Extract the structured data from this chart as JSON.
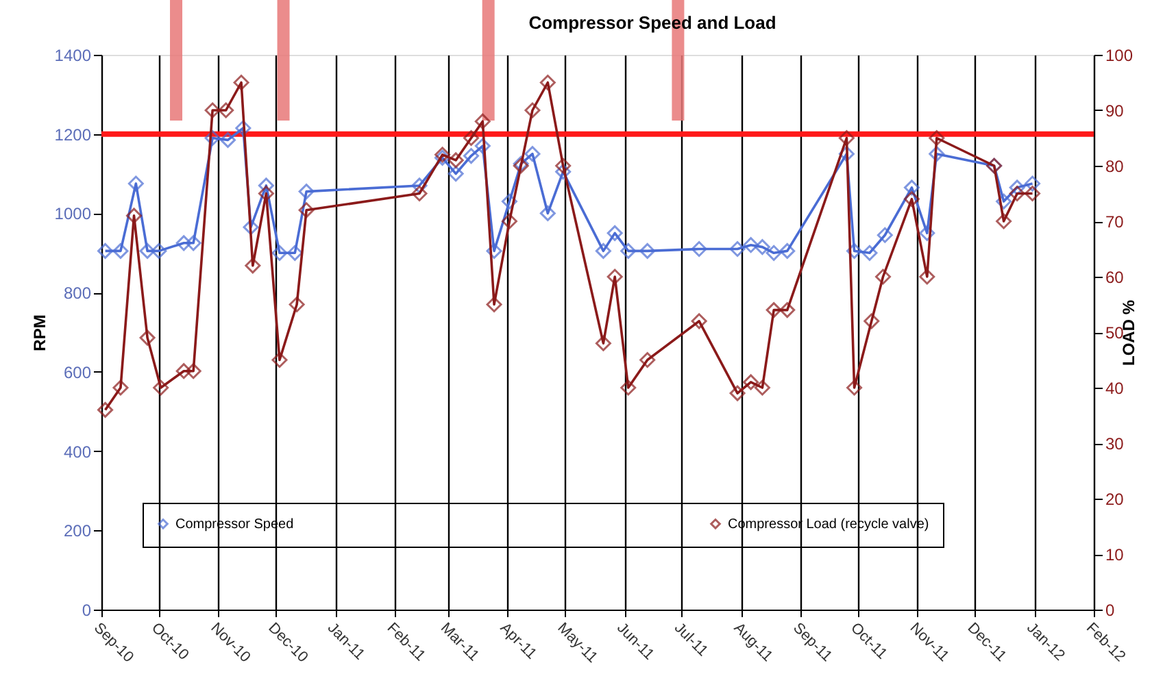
{
  "chart_data": {
    "type": "line",
    "title": "Compressor Speed and Load",
    "ylabel": "RPM",
    "y2label": "LOAD %",
    "xlim": [
      "2010-09-01",
      "2012-02-01"
    ],
    "xticks": [
      {
        "value": "2010-09-01",
        "label": "Sep-10"
      },
      {
        "value": "2010-10-01",
        "label": "Oct-10"
      },
      {
        "value": "2010-11-01",
        "label": "Nov-10"
      },
      {
        "value": "2010-12-01",
        "label": "Dec-10"
      },
      {
        "value": "2011-01-01",
        "label": "Jan-11"
      },
      {
        "value": "2011-02-01",
        "label": "Feb-11"
      },
      {
        "value": "2011-03-01",
        "label": "Mar-11"
      },
      {
        "value": "2011-04-01",
        "label": "Apr-11"
      },
      {
        "value": "2011-05-01",
        "label": "May-11"
      },
      {
        "value": "2011-06-01",
        "label": "Jun-11"
      },
      {
        "value": "2011-07-01",
        "label": "Jul-11"
      },
      {
        "value": "2011-08-01",
        "label": "Aug-11"
      },
      {
        "value": "2011-09-01",
        "label": "Sep-11"
      },
      {
        "value": "2011-10-01",
        "label": "Oct-11"
      },
      {
        "value": "2011-11-01",
        "label": "Nov-11"
      },
      {
        "value": "2011-12-01",
        "label": "Dec-11"
      },
      {
        "value": "2012-01-01",
        "label": "Jan-12"
      },
      {
        "value": "2012-02-01",
        "label": "Feb-12"
      }
    ],
    "ylim": [
      0,
      1400
    ],
    "yticks": [
      0,
      200,
      400,
      600,
      800,
      1000,
      1200,
      1400
    ],
    "y2lim": [
      0,
      100
    ],
    "y2ticks": [
      0,
      10,
      20,
      30,
      40,
      50,
      60,
      70,
      80,
      90,
      100
    ],
    "grid": "x",
    "legend": "bottom",
    "marker": "diamond",
    "line_style": "solid",
    "series": [
      {
        "name": "Compressor Speed",
        "color": "#4a6cd4",
        "x": [
          "2010-09-03",
          "2010-09-11",
          "2010-09-19",
          "2010-09-25",
          "2010-10-01",
          "2010-10-14",
          "2010-10-19",
          "2010-10-29",
          "2010-11-06",
          "2010-11-14",
          "2010-11-18",
          "2010-11-26",
          "2010-12-03",
          "2010-12-11",
          "2010-12-17",
          "2011-02-14",
          "2011-02-26",
          "2011-03-05",
          "2011-03-13",
          "2011-03-19",
          "2011-03-25",
          "2011-04-02",
          "2011-04-08",
          "2011-04-14",
          "2011-04-22",
          "2011-04-30",
          "2011-05-21",
          "2011-05-27",
          "2011-06-03",
          "2011-06-13",
          "2011-07-10",
          "2011-07-30",
          "2011-08-06",
          "2011-08-12",
          "2011-08-18",
          "2011-08-25",
          "2011-09-25",
          "2011-09-29",
          "2011-10-07",
          "2011-10-15",
          "2011-10-29",
          "2011-11-06",
          "2011-11-11",
          "2011-12-11",
          "2011-12-16",
          "2011-12-23",
          "2011-12-31"
        ],
        "values": [
          905,
          905,
          1075,
          905,
          905,
          925,
          925,
          1190,
          1185,
          1215,
          965,
          1070,
          900,
          900,
          1055,
          1070,
          1140,
          1100,
          1145,
          1170,
          905,
          1030,
          1125,
          1150,
          1000,
          1105,
          905,
          950,
          905,
          905,
          910,
          910,
          920,
          915,
          900,
          905,
          1150,
          905,
          900,
          945,
          1065,
          950,
          1150,
          1120,
          1030,
          1065,
          1075
        ]
      },
      {
        "name": "Compressor Load (recycle valve)",
        "color": "#8b1a1a",
        "axis": "y2",
        "x": [
          "2010-09-03",
          "2010-09-11",
          "2010-09-18",
          "2010-09-25",
          "2010-10-02",
          "2010-10-14",
          "2010-10-19",
          "2010-10-29",
          "2010-11-05",
          "2010-11-13",
          "2010-11-19",
          "2010-11-26",
          "2010-12-03",
          "2010-12-12",
          "2010-12-17",
          "2011-02-14",
          "2011-02-26",
          "2011-03-05",
          "2011-03-13",
          "2011-03-19",
          "2011-03-25",
          "2011-04-02",
          "2011-04-08",
          "2011-04-14",
          "2011-04-22",
          "2011-04-30",
          "2011-05-21",
          "2011-05-27",
          "2011-06-03",
          "2011-06-13",
          "2011-07-10",
          "2011-07-30",
          "2011-08-06",
          "2011-08-12",
          "2011-08-18",
          "2011-08-25",
          "2011-09-25",
          "2011-09-29",
          "2011-10-08",
          "2011-10-14",
          "2011-10-29",
          "2011-11-06",
          "2011-11-11",
          "2011-12-11",
          "2011-12-16",
          "2011-12-23",
          "2011-12-31"
        ],
        "values": [
          36,
          40,
          71,
          49,
          40,
          43,
          43,
          90,
          90,
          95,
          62,
          75,
          45,
          55,
          72,
          75,
          82,
          81,
          85,
          88,
          55,
          70,
          80,
          90,
          95,
          80,
          48,
          60,
          40,
          45,
          52,
          39,
          41,
          40,
          54,
          54,
          85,
          40,
          52,
          60,
          74,
          60,
          85,
          80,
          70,
          75,
          75
        ]
      }
    ],
    "ref_lines": [
      {
        "axis": "y",
        "value": 1200,
        "color": "#ff1a1a"
      },
      {
        "axis": "x",
        "value": "2010-10-10",
        "color": "#e87878"
      },
      {
        "axis": "x",
        "value": "2010-12-05",
        "color": "#e87878"
      },
      {
        "axis": "x",
        "value": "2011-03-22",
        "color": "#e87878"
      },
      {
        "axis": "x",
        "value": "2011-06-29",
        "color": "#e87878"
      }
    ]
  }
}
